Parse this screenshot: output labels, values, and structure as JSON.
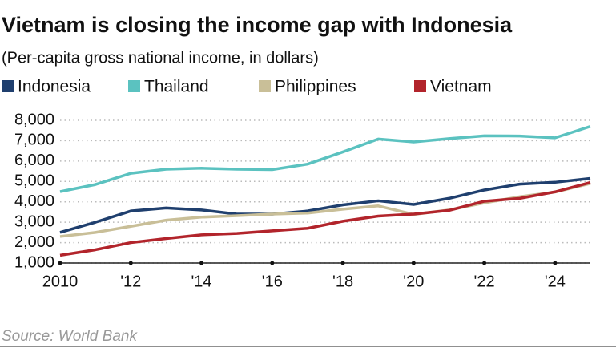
{
  "chart_data": {
    "type": "line",
    "title": "Vietnam is closing the income gap with Indonesia",
    "subtitle": "(Per-capita gross national income, in dollars)",
    "source": "Source: World Bank",
    "x": [
      2010,
      2011,
      2012,
      2013,
      2014,
      2015,
      2016,
      2017,
      2018,
      2019,
      2020,
      2021,
      2022,
      2023,
      2024,
      2025
    ],
    "xlim": [
      2010,
      2025
    ],
    "xticks": [
      2010,
      {
        "value": 2012,
        "label": "'12"
      },
      {
        "value": 2014,
        "label": "'14"
      },
      {
        "value": 2016,
        "label": "'16"
      },
      {
        "value": 2018,
        "label": "'18"
      },
      {
        "value": 2020,
        "label": "'20"
      },
      {
        "value": 2022,
        "label": "'22"
      },
      {
        "value": 2024,
        "label": "'24"
      }
    ],
    "ylim": [
      1000,
      8000
    ],
    "yticks": [
      {
        "value": 1000,
        "label": "1,000"
      },
      {
        "value": 2000,
        "label": "2,000"
      },
      {
        "value": 3000,
        "label": "3,000"
      },
      {
        "value": 4000,
        "label": "4,000"
      },
      {
        "value": 5000,
        "label": "5,000"
      },
      {
        "value": 6000,
        "label": "6,000"
      },
      {
        "value": 7000,
        "label": "7,000"
      },
      {
        "value": 8000,
        "label": "8,000"
      }
    ],
    "grid": true,
    "series": [
      {
        "name": "Indonesia",
        "color": "#1f3f6e",
        "values": [
          2500,
          3000,
          3550,
          3700,
          3600,
          3400,
          3400,
          3550,
          3850,
          4050,
          3870,
          4170,
          4580,
          4870,
          4960,
          5150
        ]
      },
      {
        "name": "Thailand",
        "color": "#5bc2c0",
        "values": [
          4500,
          4850,
          5400,
          5600,
          5650,
          5600,
          5580,
          5850,
          6450,
          7080,
          6940,
          7100,
          7240,
          7230,
          7140,
          7700
        ]
      },
      {
        "name": "Philippines",
        "color": "#c9bf98",
        "values": [
          2300,
          2500,
          2800,
          3100,
          3250,
          3320,
          3400,
          3450,
          3640,
          3800,
          3380,
          3600,
          3950,
          4250,
          4480,
          4900
        ]
      },
      {
        "name": "Vietnam",
        "color": "#b2242b",
        "values": [
          1380,
          1650,
          2000,
          2200,
          2380,
          2450,
          2580,
          2700,
          3050,
          3300,
          3400,
          3580,
          4030,
          4170,
          4490,
          4950
        ]
      }
    ]
  }
}
